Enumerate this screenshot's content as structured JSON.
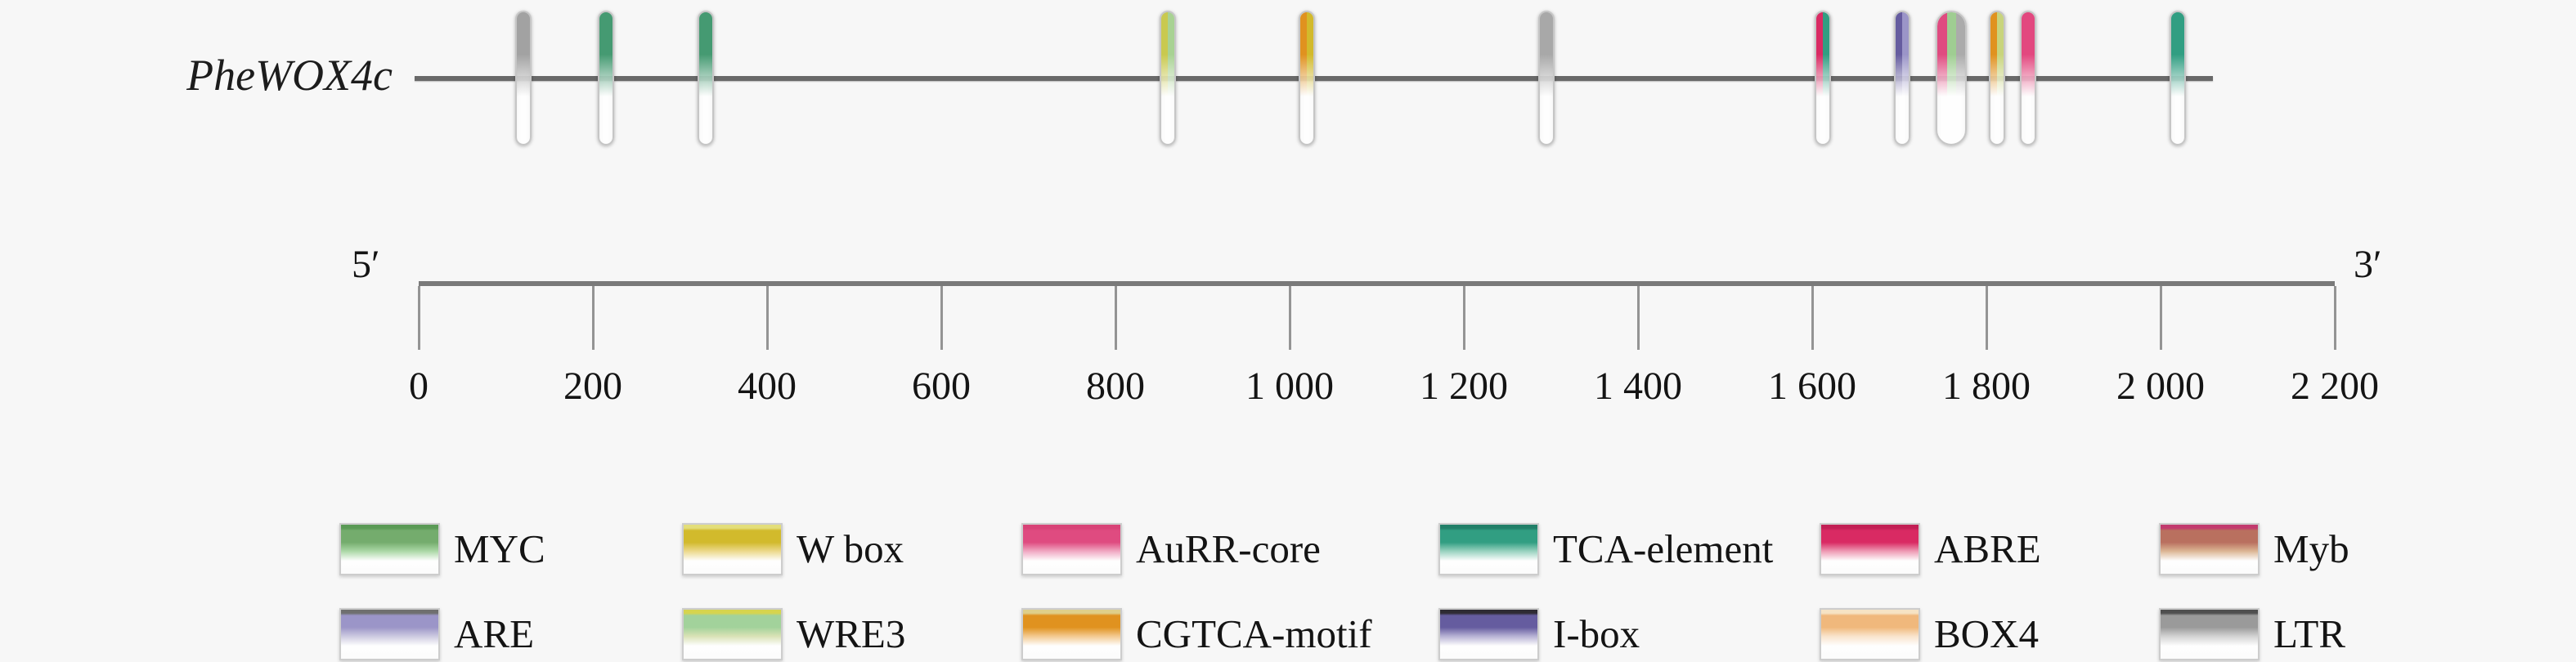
{
  "figure_background": "#f7f7f7",
  "gene": {
    "name": "PheWOX4c",
    "line_start_bp": 0,
    "line_end_bp": 2060
  },
  "axis": {
    "five_prime": "5′",
    "three_prime": "3′",
    "min_bp": 0,
    "max_bp": 2200,
    "ticks": [
      {
        "bp": 0,
        "label": "0"
      },
      {
        "bp": 200,
        "label": "200"
      },
      {
        "bp": 400,
        "label": "400"
      },
      {
        "bp": 600,
        "label": "600"
      },
      {
        "bp": 800,
        "label": "800"
      },
      {
        "bp": 1000,
        "label": "1 000"
      },
      {
        "bp": 1200,
        "label": "1 200"
      },
      {
        "bp": 1400,
        "label": "1 400"
      },
      {
        "bp": 1600,
        "label": "1 600"
      },
      {
        "bp": 1800,
        "label": "1 800"
      },
      {
        "bp": 2000,
        "label": "2 000"
      },
      {
        "bp": 2200,
        "label": "2 200"
      }
    ]
  },
  "markers": [
    {
      "bp": 120,
      "elements": [
        "LTR"
      ],
      "colors": [
        "#a2a2a2"
      ]
    },
    {
      "bp": 215,
      "elements": [
        "MYC"
      ],
      "colors": [
        "#459a72"
      ]
    },
    {
      "bp": 330,
      "elements": [
        "MYC"
      ],
      "colors": [
        "#459a72"
      ]
    },
    {
      "bp": 860,
      "elements": [
        "W box",
        "WRE3"
      ],
      "colors": [
        "#c9c94f",
        "#a8d293"
      ]
    },
    {
      "bp": 1020,
      "elements": [
        "CGTCA-motif",
        "W box"
      ],
      "colors": [
        "#e0921f",
        "#d2ba2c"
      ]
    },
    {
      "bp": 1295,
      "elements": [
        "LTR"
      ],
      "colors": [
        "#a8a8a8"
      ]
    },
    {
      "bp": 1612,
      "elements": [
        "ABRE",
        "TCA-element"
      ],
      "colors": [
        "#d92a63",
        "#319e82"
      ]
    },
    {
      "bp": 1703,
      "elements": [
        "I-box",
        "ARE"
      ],
      "colors": [
        "#655c9f",
        "#9b95c8"
      ]
    },
    {
      "bp": 1760,
      "elements": [
        "AuRR-core",
        "WRE3",
        "LTR"
      ],
      "colors": [
        "#df4b80",
        "#9fcd92",
        "#ababab"
      ],
      "wide": true
    },
    {
      "bp": 1812,
      "elements": [
        "CGTCA-motif",
        "WRE3"
      ],
      "colors": [
        "#e0921f",
        "#c8d47c"
      ]
    },
    {
      "bp": 1848,
      "elements": [
        "AuRR-core"
      ],
      "colors": [
        "#e2487f"
      ]
    },
    {
      "bp": 2020,
      "elements": [
        "TCA-element"
      ],
      "colors": [
        "#319e82"
      ]
    }
  ],
  "legend": {
    "rows": [
      [
        {
          "label": "MYC",
          "top": "#5a9a55",
          "color": "#74ac6d",
          "light": "#abd8a6"
        },
        {
          "label": "W box",
          "top": "#e3de7a",
          "color": "#d2ba2c",
          "light": "#ecd98b"
        },
        {
          "label": "AuRR-core",
          "top": "#d84277",
          "color": "#df4b80",
          "light": "#f0a8c2"
        },
        {
          "label": "TCA-element",
          "top": "#217f68",
          "color": "#319e82",
          "light": "#98d2bf"
        },
        {
          "label": "ABRE",
          "top": "#c21e54",
          "color": "#d92a63",
          "light": "#ee9ab4"
        },
        {
          "label": "Myb",
          "top": "#c23a6e",
          "color": "#b9705f",
          "light": "#dcb694"
        }
      ],
      [
        {
          "label": "ARE",
          "top": "#6f6f6f",
          "color": "#9b95c8",
          "light": "#ccc9e0"
        },
        {
          "label": "WRE3",
          "top": "#d6d44e",
          "color": "#a2d29b",
          "light": "#d9e2b5"
        },
        {
          "label": "CGTCA-motif",
          "top": "#dfcf8a",
          "color": "#e0921f",
          "light": "#f3c98f"
        },
        {
          "label": "I-box",
          "top": "#2e2b33",
          "color": "#655c9f",
          "light": "#b6b1d4"
        },
        {
          "label": "BOX4",
          "top": "#f6e3c4",
          "color": "#f0b87c",
          "light": "#f9e3cb"
        },
        {
          "label": "LTR",
          "top": "#4f4f4f",
          "color": "#9a9a9a",
          "light": "#d2d2d2"
        }
      ]
    ]
  }
}
